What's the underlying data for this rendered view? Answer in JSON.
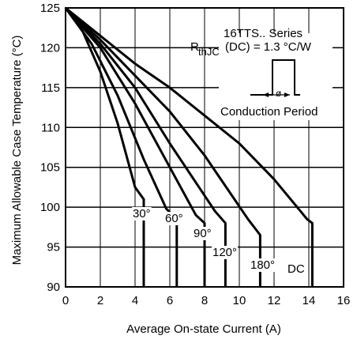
{
  "chart_data": {
    "type": "line",
    "title": "",
    "xlabel": "Average On-state Current (A)",
    "ylabel": "Maximum Allowable Case Temperature (°C)",
    "xlim": [
      0,
      16
    ],
    "ylim": [
      90,
      125
    ],
    "xticks": [
      "0",
      "2",
      "4",
      "6",
      "8",
      "10",
      "12",
      "14",
      "16"
    ],
    "yticks": [
      "90",
      "95",
      "100",
      "105",
      "110",
      "115",
      "120",
      "125"
    ],
    "grid": true,
    "annotations": {
      "series_title": "16TTS.. Series",
      "rth_label": "R",
      "rth_subscript": "thJC",
      "rth_rest": "(DC) = 1.3 °C/W",
      "conduction_label": "Conduction Period"
    },
    "series": [
      {
        "name": "30°",
        "x": [
          0,
          1,
          2,
          3,
          4.0,
          4.5,
          4.5
        ],
        "y": [
          125,
          122,
          117,
          110.5,
          102.5,
          101,
          90
        ]
      },
      {
        "name": "60°",
        "x": [
          0,
          1.5,
          3,
          4.5,
          5.8,
          6.4,
          6.4
        ],
        "y": [
          125,
          120.5,
          114,
          106,
          99.8,
          98.5,
          90
        ]
      },
      {
        "name": "90°",
        "x": [
          0,
          2,
          4,
          6,
          7.5,
          8.0,
          8.0
        ],
        "y": [
          125,
          120,
          113,
          105,
          99,
          98,
          90
        ]
      },
      {
        "name": "120°",
        "x": [
          0,
          2,
          4,
          6,
          8.6,
          9.2,
          9.2
        ],
        "y": [
          125,
          120.5,
          115,
          108,
          99.5,
          98,
          90
        ]
      },
      {
        "name": "180°",
        "x": [
          0,
          2,
          4,
          6,
          8,
          10.5,
          11.2,
          11.2
        ],
        "y": [
          125,
          121,
          116.5,
          112,
          106.5,
          98.5,
          96.5,
          90
        ]
      },
      {
        "name": "DC",
        "x": [
          0,
          2,
          4,
          6,
          8,
          10,
          12,
          13.9,
          14.2,
          14.2
        ],
        "y": [
          125,
          121.5,
          118,
          115,
          111.5,
          108,
          103.5,
          98.5,
          98,
          90
        ]
      }
    ]
  }
}
